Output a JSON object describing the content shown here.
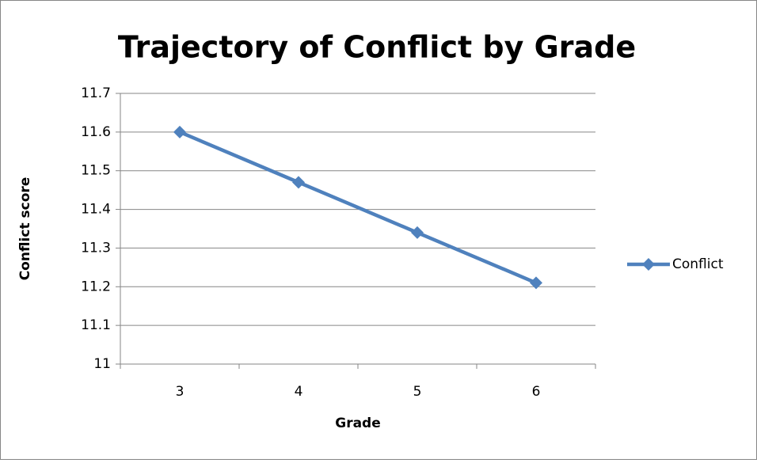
{
  "chart_data": {
    "type": "line",
    "title": "Trajectory of Conflict by Grade",
    "x_label": "Grade",
    "y_label": "Conflict score",
    "categories": [
      "3",
      "4",
      "5",
      "6"
    ],
    "series": [
      {
        "name": "Conflict",
        "color": "#4f81bd",
        "values": [
          11.6,
          11.47,
          11.34,
          11.21
        ]
      }
    ],
    "ylim": [
      11,
      11.7
    ],
    "yticks": [
      11,
      11.1,
      11.2,
      11.3,
      11.4,
      11.5,
      11.6,
      11.7
    ],
    "grid": true,
    "legend": "right"
  }
}
